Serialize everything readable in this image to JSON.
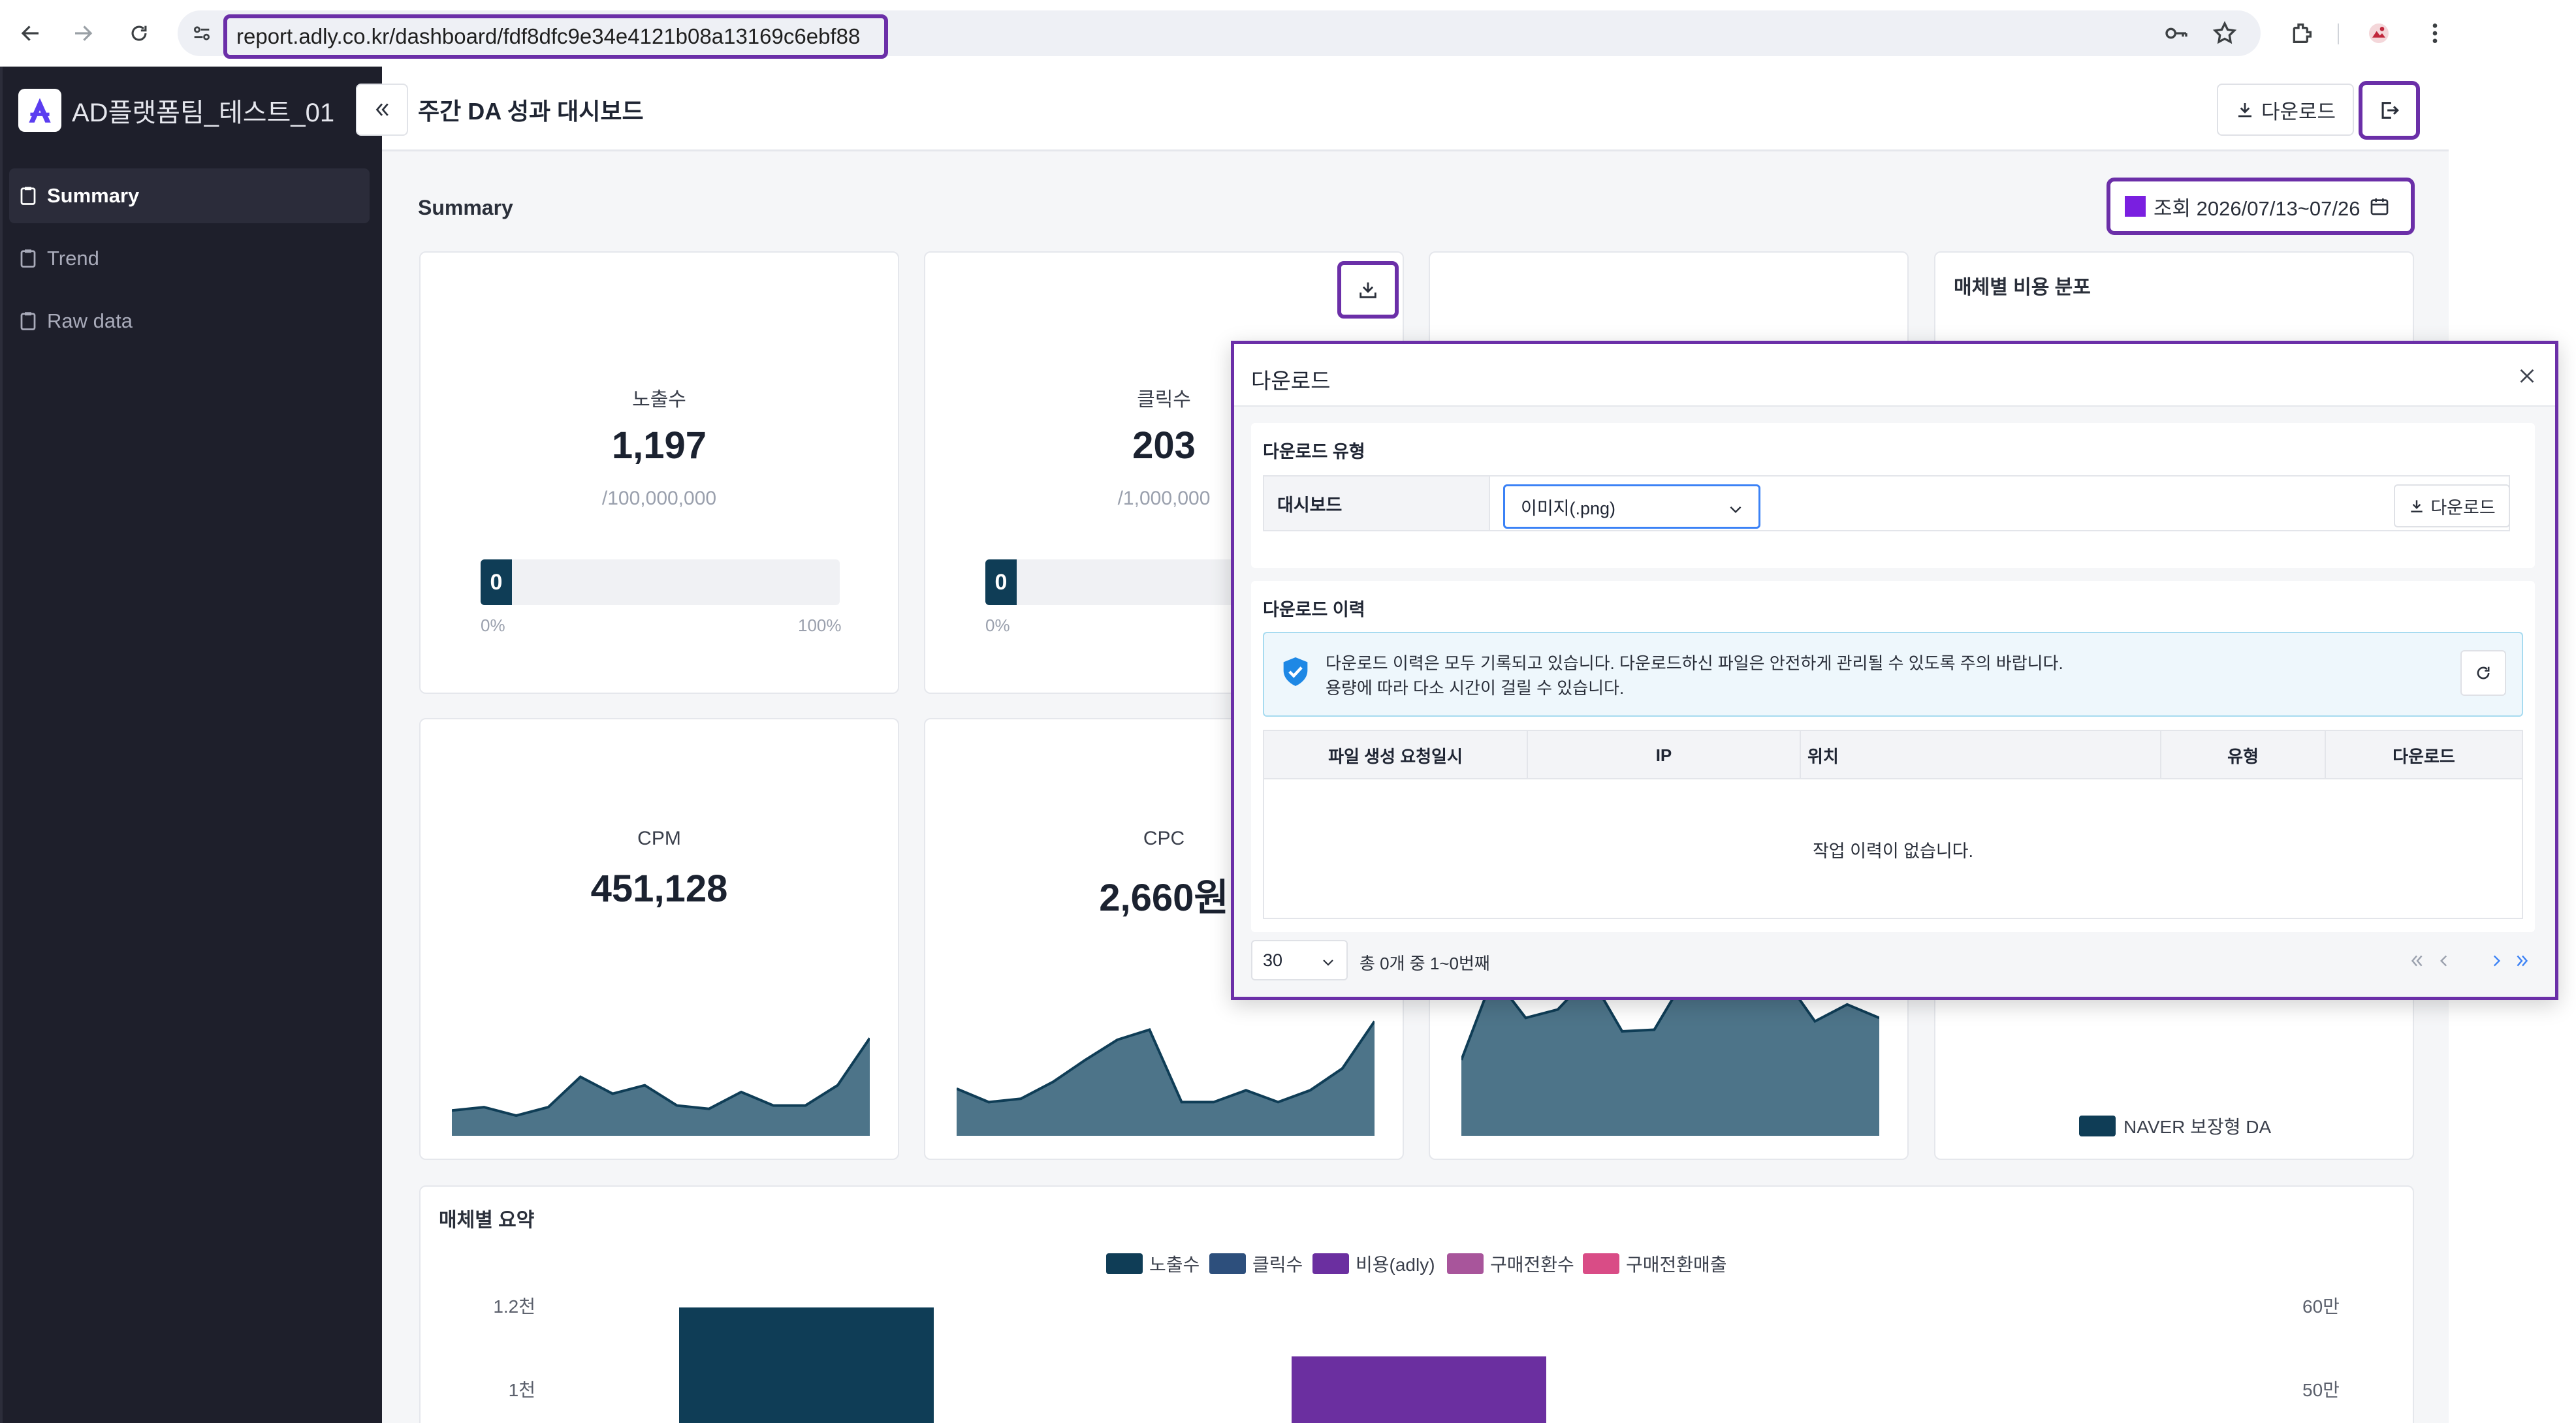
{
  "browser": {
    "url": "report.adly.co.kr/dashboard/fdf8dfc9e34e4121b08a13169c6ebf88"
  },
  "sidebar": {
    "brand": "AD플랫폼팀_테스트_01",
    "items": [
      {
        "label": "Summary",
        "active": true
      },
      {
        "label": "Trend",
        "active": false
      },
      {
        "label": "Raw data",
        "active": false
      }
    ]
  },
  "header": {
    "title": "주간 DA 성과 대시보드",
    "download_label": "다운로드"
  },
  "main": {
    "section_label": "Summary",
    "date_filter": {
      "label": "조회 2026/07/13~07/26",
      "swatch_color": "#7a1fe0"
    },
    "kpis": [
      {
        "label": "노출수",
        "value": "1,197",
        "target": "/100,000,000",
        "progress_label": "0",
        "progress_min": "0%",
        "progress_max": "100%"
      },
      {
        "label": "클릭수",
        "value": "203",
        "target": "/1,000,000",
        "progress_label": "0",
        "progress_min": "0%"
      }
    ],
    "trend_cards": [
      {
        "label": "CPM",
        "value": "451,128",
        "series": [
          15,
          17,
          12,
          17,
          35,
          25,
          30,
          18,
          16,
          26,
          18,
          18,
          30,
          58
        ]
      },
      {
        "label": "CPC",
        "value": "2,660원",
        "series": [
          28,
          20,
          22,
          32,
          45,
          57,
          63,
          20,
          20,
          27,
          20,
          27,
          40,
          68
        ]
      },
      {
        "label": "",
        "value": "",
        "series": [
          45,
          95,
          70,
          75,
          95,
          62,
          63,
          95,
          95,
          95,
          95,
          68,
          78,
          70
        ]
      }
    ],
    "media_cost": {
      "title": "매체별 비용 분포",
      "legend": "NAVER 보장형 DA",
      "legend_color": "#0f3d56"
    },
    "media_summary": {
      "title": "매체별 요약",
      "legend": [
        {
          "label": "노출수",
          "color": "#0f3d56"
        },
        {
          "label": "클릭수",
          "color": "#2d4f7c"
        },
        {
          "label": "비용(adly)",
          "color": "#6b2fa0"
        },
        {
          "label": "구매전환수",
          "color": "#a8559b"
        },
        {
          "label": "구매전환매출",
          "color": "#d94c86"
        }
      ],
      "left_ticks": [
        "1.2천",
        "1천"
      ],
      "right_ticks": [
        "60만",
        "50만"
      ]
    }
  },
  "modal": {
    "title": "다운로드",
    "type_section": "다운로드 유형",
    "row_label": "대시보드",
    "select_value": "이미지(.png)",
    "run_button": "다운로드",
    "history_section": "다운로드 이력",
    "notice_line1": "다운로드 이력은 모두 기록되고 있습니다. 다운로드하신 파일은 안전하게 관리될 수 있도록 주의 바랍니다.",
    "notice_line2": "용량에 따라 다소 시간이 걸릴 수 있습니다.",
    "columns": [
      "파일 생성 요청일시",
      "IP",
      "위치",
      "유형",
      "다운로드"
    ],
    "empty": "작업 이력이 없습니다.",
    "page_size": "30",
    "page_count": "총 0개 중 1~0번째"
  }
}
